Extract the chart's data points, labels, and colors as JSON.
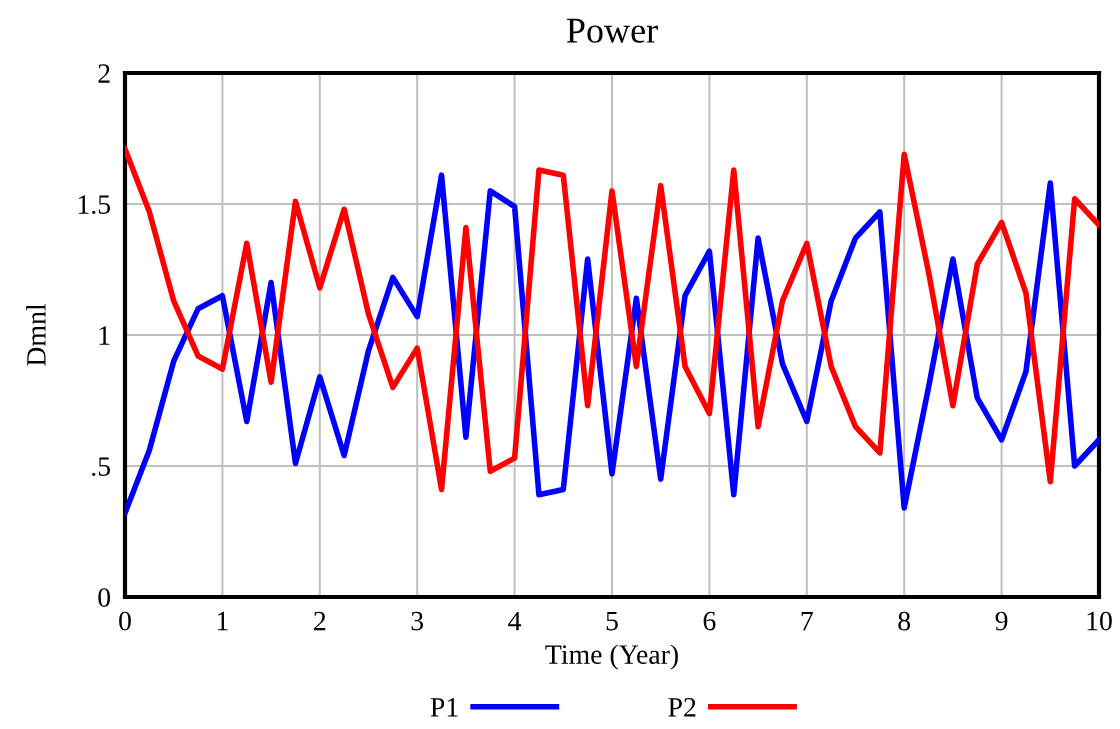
{
  "chart_data": {
    "type": "line",
    "title": "Power",
    "xlabel": "Time (Year)",
    "ylabel": "Dmnl",
    "x": [
      0,
      0.25,
      0.5,
      0.75,
      1,
      1.25,
      1.5,
      1.75,
      2,
      2.25,
      2.5,
      2.75,
      3,
      3.25,
      3.5,
      3.75,
      4,
      4.25,
      4.5,
      4.75,
      5,
      5.25,
      5.5,
      5.75,
      6,
      6.25,
      6.5,
      6.75,
      7,
      7.25,
      7.5,
      7.75,
      8,
      8.25,
      8.5,
      8.75,
      9,
      9.25,
      9.5,
      9.75,
      10
    ],
    "series": [
      {
        "name": "P1",
        "color": "#0000ff",
        "values": [
          0.32,
          0.56,
          0.9,
          1.1,
          1.15,
          0.67,
          1.2,
          0.51,
          0.84,
          0.54,
          0.94,
          1.22,
          1.07,
          1.61,
          0.61,
          1.55,
          1.49,
          0.39,
          0.41,
          1.29,
          0.47,
          1.14,
          0.45,
          1.15,
          1.32,
          0.39,
          1.37,
          0.89,
          0.67,
          1.13,
          1.37,
          1.47,
          0.34,
          0.8,
          1.29,
          0.76,
          0.6,
          0.86,
          1.58,
          0.5,
          0.6
        ]
      },
      {
        "name": "P2",
        "color": "#ff0000",
        "values": [
          1.71,
          1.47,
          1.13,
          0.92,
          0.87,
          1.35,
          0.82,
          1.51,
          1.18,
          1.48,
          1.08,
          0.8,
          0.95,
          0.41,
          1.41,
          0.48,
          0.53,
          1.63,
          1.61,
          0.73,
          1.55,
          0.88,
          1.57,
          0.88,
          0.7,
          1.63,
          0.65,
          1.13,
          1.35,
          0.88,
          0.65,
          0.55,
          1.69,
          1.24,
          0.73,
          1.27,
          1.43,
          1.16,
          0.44,
          1.52,
          1.42
        ]
      }
    ],
    "xlim": [
      0,
      10
    ],
    "xticks": [
      0,
      1,
      2,
      3,
      4,
      5,
      6,
      7,
      8,
      9,
      10
    ],
    "ylim": [
      0,
      2
    ],
    "yticks": [
      0,
      {
        "value": 0.5,
        "label": ".5"
      },
      1,
      1.5,
      2
    ],
    "grid": true,
    "legend": "bottom",
    "marker": "none",
    "line_style": "solid"
  }
}
